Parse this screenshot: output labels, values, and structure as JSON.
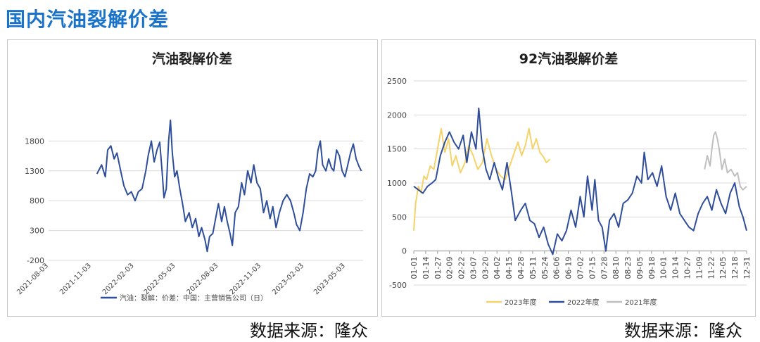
{
  "page_title": "国内汽油裂解价差",
  "source_left": "数据来源：隆众",
  "source_right": "数据来源：隆众",
  "colors": {
    "accent": "#1a73c8",
    "line_main": "#2e4d9a",
    "y2023": "#f5d36b",
    "y2022": "#2e4d9a",
    "y2021": "#bfbfbf",
    "grid": "#d9d9d9"
  },
  "chart_data": [
    {
      "type": "line",
      "title": "汽油裂解价差",
      "y_ticks": [
        -200,
        300,
        800,
        1300,
        1800
      ],
      "ylim": [
        -200,
        2300
      ],
      "x_ticks": [
        "2021-08-03",
        "2021-11-03",
        "2022-02-03",
        "2022-05-03",
        "2022-08-03",
        "2022-11-03",
        "2023-02-03",
        "2023-05-03"
      ],
      "xlim": [
        "2021-08-03",
        "2023-06-10"
      ],
      "grid": true,
      "legend_position": "bottom",
      "series": [
        {
          "name": "汽油：裂解：价差：中国：主营销售公司（日）",
          "color": "#2e4d9a",
          "points": [
            [
              "2021-11-15",
              1250
            ],
            [
              "2021-11-25",
              1400
            ],
            [
              "2021-12-03",
              1200
            ],
            [
              "2021-12-08",
              1650
            ],
            [
              "2021-12-15",
              1720
            ],
            [
              "2021-12-22",
              1500
            ],
            [
              "2021-12-28",
              1600
            ],
            [
              "2022-01-05",
              1300
            ],
            [
              "2022-01-12",
              1050
            ],
            [
              "2022-01-20",
              900
            ],
            [
              "2022-01-28",
              950
            ],
            [
              "2022-02-05",
              800
            ],
            [
              "2022-02-12",
              950
            ],
            [
              "2022-02-20",
              1000
            ],
            [
              "2022-02-28",
              1300
            ],
            [
              "2022-03-05",
              1550
            ],
            [
              "2022-03-12",
              1800
            ],
            [
              "2022-03-18",
              1450
            ],
            [
              "2022-03-24",
              1650
            ],
            [
              "2022-03-30",
              1780
            ],
            [
              "2022-04-04",
              1300
            ],
            [
              "2022-04-08",
              850
            ],
            [
              "2022-04-13",
              1000
            ],
            [
              "2022-04-18",
              1800
            ],
            [
              "2022-04-22",
              2150
            ],
            [
              "2022-04-26",
              1600
            ],
            [
              "2022-05-01",
              1200
            ],
            [
              "2022-05-06",
              1300
            ],
            [
              "2022-05-12",
              1000
            ],
            [
              "2022-05-18",
              750
            ],
            [
              "2022-05-24",
              450
            ],
            [
              "2022-06-01",
              600
            ],
            [
              "2022-06-08",
              350
            ],
            [
              "2022-06-15",
              500
            ],
            [
              "2022-06-22",
              200
            ],
            [
              "2022-06-28",
              350
            ],
            [
              "2022-07-05",
              150
            ],
            [
              "2022-07-10",
              -50
            ],
            [
              "2022-07-15",
              200
            ],
            [
              "2022-07-22",
              250
            ],
            [
              "2022-07-28",
              500
            ],
            [
              "2022-08-03",
              750
            ],
            [
              "2022-08-10",
              450
            ],
            [
              "2022-08-16",
              700
            ],
            [
              "2022-08-22",
              450
            ],
            [
              "2022-08-28",
              250
            ],
            [
              "2022-09-02",
              50
            ],
            [
              "2022-09-08",
              600
            ],
            [
              "2022-09-15",
              700
            ],
            [
              "2022-09-22",
              1100
            ],
            [
              "2022-09-28",
              900
            ],
            [
              "2022-10-05",
              1300
            ],
            [
              "2022-10-12",
              1100
            ],
            [
              "2022-10-18",
              1400
            ],
            [
              "2022-10-25",
              1100
            ],
            [
              "2022-11-01",
              1000
            ],
            [
              "2022-11-08",
              600
            ],
            [
              "2022-11-15",
              800
            ],
            [
              "2022-11-22",
              500
            ],
            [
              "2022-11-28",
              700
            ],
            [
              "2022-12-05",
              350
            ],
            [
              "2022-12-12",
              600
            ],
            [
              "2022-12-20",
              800
            ],
            [
              "2022-12-28",
              900
            ],
            [
              "2023-01-05",
              800
            ],
            [
              "2023-01-12",
              600
            ],
            [
              "2023-01-18",
              400
            ],
            [
              "2023-01-25",
              300
            ],
            [
              "2023-02-01",
              600
            ],
            [
              "2023-02-08",
              1000
            ],
            [
              "2023-02-15",
              1250
            ],
            [
              "2023-02-22",
              1200
            ],
            [
              "2023-02-28",
              1300
            ],
            [
              "2023-03-05",
              1650
            ],
            [
              "2023-03-10",
              1800
            ],
            [
              "2023-03-15",
              1400
            ],
            [
              "2023-03-22",
              1300
            ],
            [
              "2023-03-28",
              1500
            ],
            [
              "2023-04-03",
              1350
            ],
            [
              "2023-04-08",
              1300
            ],
            [
              "2023-04-14",
              1650
            ],
            [
              "2023-04-20",
              1550
            ],
            [
              "2023-04-26",
              1300
            ],
            [
              "2023-05-02",
              1200
            ],
            [
              "2023-05-08",
              1400
            ],
            [
              "2023-05-14",
              1600
            ],
            [
              "2023-05-20",
              1750
            ],
            [
              "2023-05-26",
              1500
            ],
            [
              "2023-06-01",
              1380
            ],
            [
              "2023-06-06",
              1300
            ]
          ]
        }
      ]
    },
    {
      "type": "line",
      "title": "92汽油裂解价差",
      "y_ticks": [
        -500,
        0,
        500,
        1000,
        1500,
        2000,
        2500
      ],
      "ylim": [
        -500,
        2500
      ],
      "x_ticks": [
        "01-01",
        "01-14",
        "01-27",
        "02-09",
        "02-22",
        "03-07",
        "03-20",
        "04-02",
        "04-15",
        "04-28",
        "05-11",
        "05-24",
        "06-06",
        "06-19",
        "07-02",
        "07-15",
        "07-28",
        "08-10",
        "08-23",
        "09-05",
        "09-18",
        "10-01",
        "10-14",
        "10-27",
        "11-09",
        "11-22",
        "12-05",
        "12-18",
        "12-31"
      ],
      "grid": true,
      "legend_position": "bottom",
      "series": [
        {
          "name": "2023年度",
          "color": "#f5d36b",
          "points": [
            [
              "01-01",
              300
            ],
            [
              "01-03",
              700
            ],
            [
              "01-06",
              950
            ],
            [
              "01-09",
              850
            ],
            [
              "01-12",
              1100
            ],
            [
              "01-15",
              1050
            ],
            [
              "01-19",
              1250
            ],
            [
              "01-23",
              1200
            ],
            [
              "01-27",
              1500
            ],
            [
              "01-31",
              1800
            ],
            [
              "02-04",
              1450
            ],
            [
              "02-08",
              1650
            ],
            [
              "02-12",
              1250
            ],
            [
              "02-16",
              1400
            ],
            [
              "02-21",
              1150
            ],
            [
              "02-26",
              1300
            ],
            [
              "03-02",
              1550
            ],
            [
              "03-07",
              1400
            ],
            [
              "03-12",
              1200
            ],
            [
              "03-17",
              1300
            ],
            [
              "03-22",
              1650
            ],
            [
              "03-27",
              1400
            ],
            [
              "04-01",
              1200
            ],
            [
              "04-06",
              1100
            ],
            [
              "04-11",
              1050
            ],
            [
              "04-16",
              1250
            ],
            [
              "04-21",
              1450
            ],
            [
              "04-25",
              1600
            ],
            [
              "04-29",
              1400
            ],
            [
              "05-03",
              1550
            ],
            [
              "05-07",
              1800
            ],
            [
              "05-11",
              1500
            ],
            [
              "05-15",
              1650
            ],
            [
              "05-19",
              1450
            ],
            [
              "05-23",
              1380
            ],
            [
              "05-26",
              1300
            ],
            [
              "05-30",
              1350
            ]
          ]
        },
        {
          "name": "2022年度",
          "color": "#2e4d9a",
          "points": [
            [
              "01-01",
              950
            ],
            [
              "01-06",
              900
            ],
            [
              "01-11",
              850
            ],
            [
              "01-16",
              950
            ],
            [
              "01-21",
              1000
            ],
            [
              "01-25",
              1050
            ],
            [
              "01-30",
              1400
            ],
            [
              "02-04",
              1600
            ],
            [
              "02-09",
              1750
            ],
            [
              "02-14",
              1600
            ],
            [
              "02-19",
              1500
            ],
            [
              "02-24",
              1700
            ],
            [
              "02-28",
              1300
            ],
            [
              "03-05",
              1750
            ],
            [
              "03-10",
              1500
            ],
            [
              "03-13",
              2100
            ],
            [
              "03-17",
              1500
            ],
            [
              "03-21",
              1200
            ],
            [
              "03-25",
              1050
            ],
            [
              "03-30",
              1300
            ],
            [
              "04-04",
              1050
            ],
            [
              "04-08",
              900
            ],
            [
              "04-13",
              1300
            ],
            [
              "04-18",
              850
            ],
            [
              "04-22",
              450
            ],
            [
              "04-28",
              600
            ],
            [
              "05-03",
              700
            ],
            [
              "05-08",
              450
            ],
            [
              "05-13",
              400
            ],
            [
              "05-18",
              200
            ],
            [
              "05-23",
              350
            ],
            [
              "05-28",
              100
            ],
            [
              "06-02",
              -50
            ],
            [
              "06-07",
              250
            ],
            [
              "06-12",
              150
            ],
            [
              "06-17",
              300
            ],
            [
              "06-22",
              600
            ],
            [
              "06-27",
              350
            ],
            [
              "07-02",
              800
            ],
            [
              "07-06",
              500
            ],
            [
              "07-10",
              1100
            ],
            [
              "07-15",
              600
            ],
            [
              "07-18",
              1050
            ],
            [
              "07-22",
              450
            ],
            [
              "07-26",
              350
            ],
            [
              "07-30",
              0
            ],
            [
              "08-03",
              450
            ],
            [
              "08-08",
              550
            ],
            [
              "08-13",
              350
            ],
            [
              "08-18",
              700
            ],
            [
              "08-23",
              750
            ],
            [
              "08-28",
              850
            ],
            [
              "09-02",
              1100
            ],
            [
              "09-07",
              1000
            ],
            [
              "09-10",
              1450
            ],
            [
              "09-14",
              1050
            ],
            [
              "09-19",
              1150
            ],
            [
              "09-24",
              950
            ],
            [
              "09-29",
              1250
            ],
            [
              "10-04",
              800
            ],
            [
              "10-09",
              600
            ],
            [
              "10-14",
              850
            ],
            [
              "10-19",
              550
            ],
            [
              "10-24",
              450
            ],
            [
              "10-29",
              350
            ],
            [
              "11-03",
              300
            ],
            [
              "11-08",
              550
            ],
            [
              "11-13",
              700
            ],
            [
              "11-18",
              800
            ],
            [
              "11-23",
              600
            ],
            [
              "11-28",
              900
            ],
            [
              "12-03",
              700
            ],
            [
              "12-08",
              550
            ],
            [
              "12-13",
              850
            ],
            [
              "12-18",
              1000
            ],
            [
              "12-23",
              650
            ],
            [
              "12-27",
              500
            ],
            [
              "12-31",
              300
            ]
          ]
        },
        {
          "name": "2021年度",
          "color": "#bfbfbf",
          "points": [
            [
              "11-15",
              1200
            ],
            [
              "11-18",
              1400
            ],
            [
              "11-21",
              1250
            ],
            [
              "11-23",
              1500
            ],
            [
              "11-25",
              1700
            ],
            [
              "11-27",
              1750
            ],
            [
              "11-29",
              1650
            ],
            [
              "12-01",
              1500
            ],
            [
              "12-04",
              1200
            ],
            [
              "12-07",
              1350
            ],
            [
              "12-10",
              1150
            ],
            [
              "12-14",
              1200
            ],
            [
              "12-18",
              1100
            ],
            [
              "12-21",
              1150
            ],
            [
              "12-24",
              950
            ],
            [
              "12-27",
              900
            ],
            [
              "12-31",
              950
            ]
          ]
        }
      ]
    }
  ]
}
